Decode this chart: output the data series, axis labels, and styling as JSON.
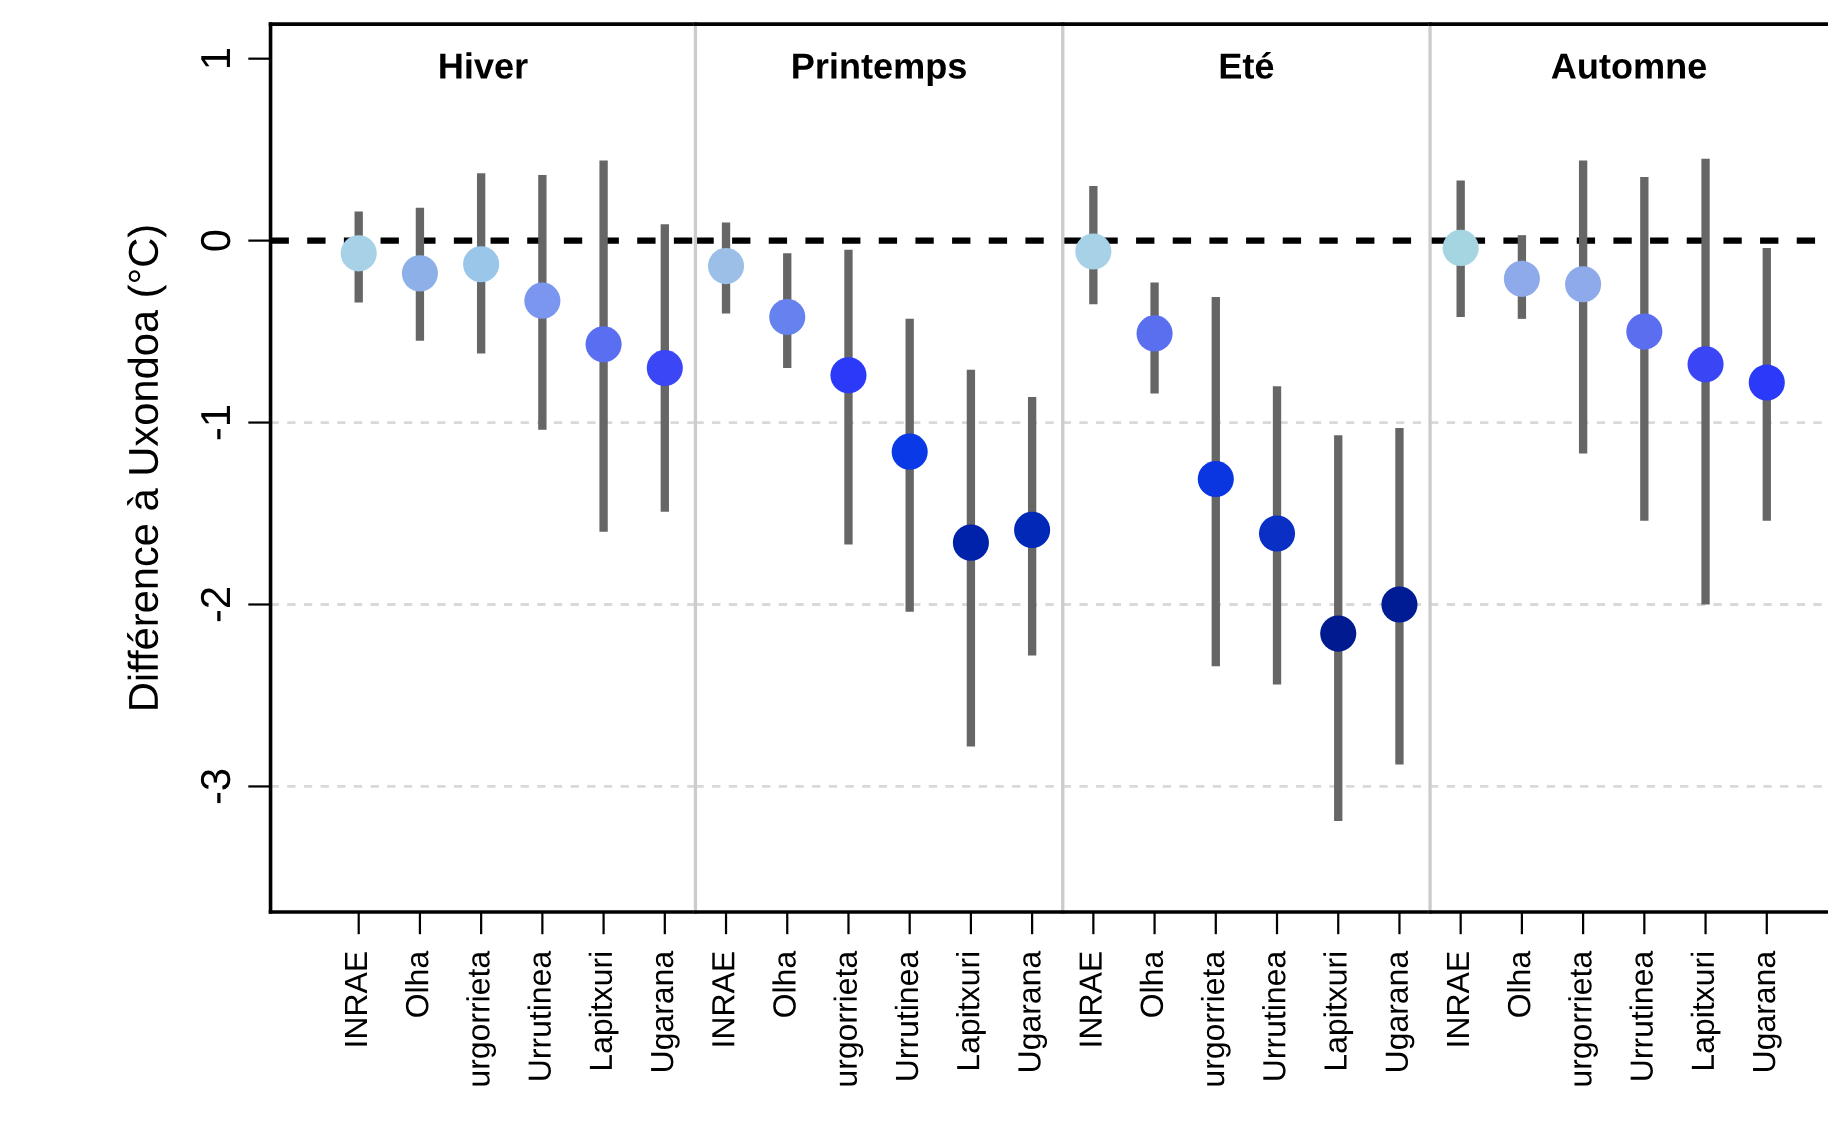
{
  "chart_data": [
    {
      "type": "scatter",
      "title": "Hiver",
      "ylabel": "Différence à Uxondoa (°C)",
      "categories": [
        "INRAE",
        "Olha",
        "urgorrieta",
        "Urrutinea",
        "Lapitxuri",
        "Ugarana"
      ],
      "values": [
        -0.07,
        -0.18,
        -0.13,
        -0.33,
        -0.57,
        -0.7
      ],
      "errors": [
        [
          -0.34,
          0.16
        ],
        [
          -0.55,
          0.18
        ],
        [
          -0.62,
          0.37
        ],
        [
          -1.04,
          0.36
        ],
        [
          -1.6,
          0.44
        ],
        [
          -1.49,
          0.09
        ]
      ],
      "colors": [
        "#a6d1e6",
        "#8eb0e8",
        "#9ac6ea",
        "#7b96ee",
        "#5a6ef2",
        "#3b46f6"
      ],
      "ylim": [
        -3.69,
        1.19
      ],
      "yticks": [
        1,
        0,
        -1,
        -2,
        -3
      ],
      "marker": "circle",
      "ref_lines": [
        {
          "axis": "y",
          "value": 0,
          "color": "#000000",
          "line_style": "dashed"
        },
        {
          "axis": "y",
          "value": -1,
          "color": "#d9d9d9",
          "line_style": "dashed"
        },
        {
          "axis": "y",
          "value": -2,
          "color": "#d9d9d9",
          "line_style": "dashed"
        },
        {
          "axis": "y",
          "value": -3,
          "color": "#d9d9d9",
          "line_style": "dashed"
        }
      ]
    },
    {
      "type": "scatter",
      "title": "Printemps",
      "categories": [
        "INRAE",
        "Olha",
        "urgorrieta",
        "Urrutinea",
        "Lapitxuri",
        "Ugarana"
      ],
      "values": [
        -0.14,
        -0.42,
        -0.74,
        -1.16,
        -1.66,
        -1.59
      ],
      "errors": [
        [
          -0.4,
          0.1
        ],
        [
          -0.7,
          -0.07
        ],
        [
          -1.67,
          -0.05
        ],
        [
          -2.04,
          -0.43
        ],
        [
          -2.78,
          -0.71
        ],
        [
          -2.28,
          -0.86
        ]
      ],
      "colors": [
        "#9cbfe8",
        "#6682ef",
        "#2a3af8",
        "#0a3ae8",
        "#0022aa",
        "#0029b8"
      ],
      "ylim": [
        -3.69,
        1.19
      ],
      "yticks": [
        1,
        0,
        -1,
        -2,
        -3
      ],
      "marker": "circle",
      "tick_labels": "x",
      "ref_lines": [
        {
          "axis": "y",
          "value": 0,
          "color": "#000000",
          "line_style": "dashed"
        },
        {
          "axis": "y",
          "value": -1,
          "color": "#d9d9d9",
          "line_style": "dashed"
        },
        {
          "axis": "y",
          "value": -2,
          "color": "#d9d9d9",
          "line_style": "dashed"
        },
        {
          "axis": "y",
          "value": -3,
          "color": "#d9d9d9",
          "line_style": "dashed"
        }
      ]
    },
    {
      "type": "scatter",
      "title": "Eté",
      "categories": [
        "INRAE",
        "Olha",
        "urgorrieta",
        "Urrutinea",
        "Lapitxuri",
        "Ugarana"
      ],
      "values": [
        -0.06,
        -0.51,
        -1.31,
        -1.61,
        -2.16,
        -2.0
      ],
      "errors": [
        [
          -0.35,
          0.3
        ],
        [
          -0.84,
          -0.23
        ],
        [
          -2.34,
          -0.31
        ],
        [
          -2.44,
          -0.8
        ],
        [
          -3.19,
          -1.07
        ],
        [
          -2.88,
          -1.03
        ]
      ],
      "colors": [
        "#a6d1e6",
        "#5a6ef0",
        "#0a36e2",
        "#0a2fc4",
        "#001b8f",
        "#001c94"
      ],
      "ylim": [
        -3.69,
        1.19
      ],
      "yticks": [
        1,
        0,
        -1,
        -2,
        -3
      ],
      "marker": "circle",
      "tick_labels": "x",
      "ref_lines": [
        {
          "axis": "y",
          "value": 0,
          "color": "#000000",
          "line_style": "dashed"
        },
        {
          "axis": "y",
          "value": -1,
          "color": "#d9d9d9",
          "line_style": "dashed"
        },
        {
          "axis": "y",
          "value": -2,
          "color": "#d9d9d9",
          "line_style": "dashed"
        },
        {
          "axis": "y",
          "value": -3,
          "color": "#d9d9d9",
          "line_style": "dashed"
        }
      ]
    },
    {
      "type": "scatter",
      "title": "Automne",
      "categories": [
        "INRAE",
        "Olha",
        "urgorrieta",
        "Urrutinea",
        "Lapitxuri",
        "Ugarana"
      ],
      "values": [
        -0.04,
        -0.21,
        -0.24,
        -0.5,
        -0.68,
        -0.78
      ],
      "errors": [
        [
          -0.42,
          0.33
        ],
        [
          -0.43,
          0.03
        ],
        [
          -1.17,
          0.44
        ],
        [
          -1.54,
          0.35
        ],
        [
          -2.0,
          0.45
        ],
        [
          -1.54,
          -0.04
        ]
      ],
      "colors": [
        "#a6d5e2",
        "#8eaaea",
        "#8eaaea",
        "#5c6ef0",
        "#3a46f6",
        "#2a3af8"
      ],
      "ylim": [
        -3.69,
        1.19
      ],
      "yticks": [
        1,
        0,
        -1,
        -2,
        -3
      ],
      "marker": "circle",
      "tick_labels": "x",
      "ref_lines": [
        {
          "axis": "y",
          "value": 0,
          "color": "#000000",
          "line_style": "dashed"
        },
        {
          "axis": "y",
          "value": -1,
          "color": "#d9d9d9",
          "line_style": "dashed"
        },
        {
          "axis": "y",
          "value": -2,
          "color": "#d9d9d9",
          "line_style": "dashed"
        },
        {
          "axis": "y",
          "value": -3,
          "color": "#d9d9d9",
          "line_style": "dashed"
        }
      ]
    }
  ]
}
